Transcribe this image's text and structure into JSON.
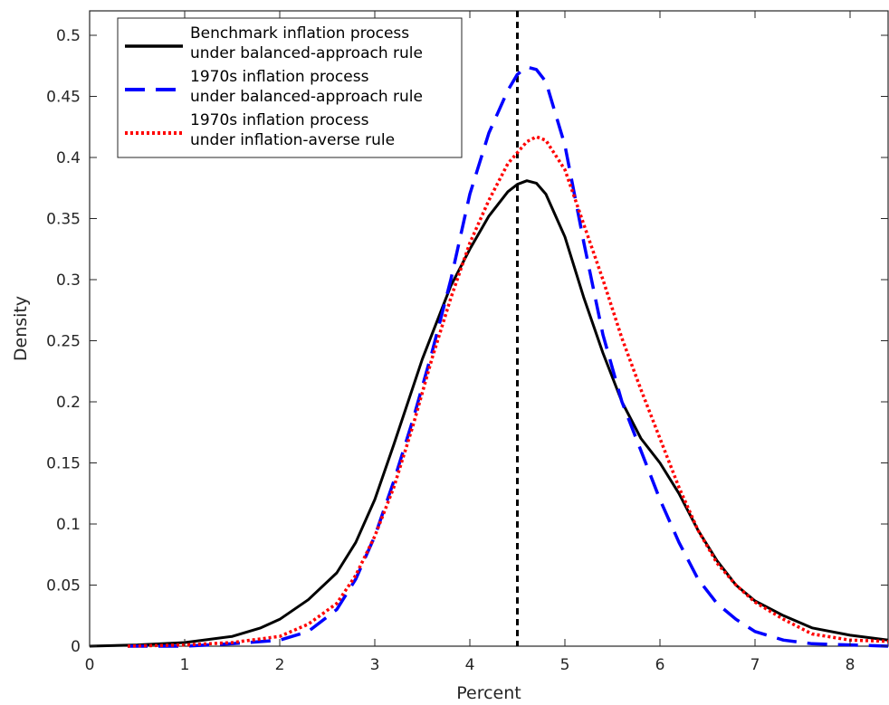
{
  "chart_data": {
    "type": "line",
    "title": "",
    "xlabel": "Percent",
    "ylabel": "Density",
    "xlim": [
      0,
      8.4
    ],
    "ylim": [
      0,
      0.52
    ],
    "xticks": [
      "0",
      "1",
      "2",
      "3",
      "4",
      "5",
      "6",
      "7",
      "8"
    ],
    "yticks": [
      "0",
      "0.05",
      "0.1",
      "0.15",
      "0.2",
      "0.25",
      "0.3",
      "0.35",
      "0.4",
      "0.45",
      "0.5"
    ],
    "grid": false,
    "legend_position": "top-left",
    "reference_line": {
      "x": 4.5,
      "style": "dashed",
      "color": "#000000"
    },
    "series": [
      {
        "name": "Benchmark inflation process under balanced-approach rule",
        "legend_lines": [
          "Benchmark inflation process",
          "under balanced-approach rule"
        ],
        "color": "#000000",
        "style": "solid",
        "x": [
          0,
          0.5,
          1.0,
          1.5,
          1.8,
          2.0,
          2.3,
          2.6,
          2.8,
          3.0,
          3.2,
          3.5,
          3.8,
          4.0,
          4.2,
          4.4,
          4.5,
          4.6,
          4.7,
          4.8,
          5.0,
          5.2,
          5.4,
          5.6,
          5.8,
          6.0,
          6.2,
          6.4,
          6.6,
          6.8,
          7.0,
          7.3,
          7.6,
          8.0,
          8.4
        ],
        "y": [
          0.0,
          0.001,
          0.003,
          0.008,
          0.015,
          0.022,
          0.038,
          0.06,
          0.085,
          0.12,
          0.165,
          0.235,
          0.295,
          0.325,
          0.352,
          0.372,
          0.378,
          0.381,
          0.379,
          0.37,
          0.335,
          0.285,
          0.24,
          0.2,
          0.17,
          0.15,
          0.125,
          0.095,
          0.07,
          0.05,
          0.037,
          0.025,
          0.015,
          0.009,
          0.005
        ]
      },
      {
        "name": "1970s inflation process under balanced-approach rule",
        "legend_lines": [
          "1970s inflation process",
          "under balanced-approach rule"
        ],
        "color": "#0000ff",
        "style": "dashed",
        "x": [
          0.4,
          1.0,
          1.5,
          2.0,
          2.3,
          2.6,
          2.8,
          3.0,
          3.2,
          3.4,
          3.6,
          3.8,
          4.0,
          4.2,
          4.4,
          4.5,
          4.6,
          4.7,
          4.8,
          5.0,
          5.2,
          5.4,
          5.6,
          5.8,
          6.0,
          6.2,
          6.4,
          6.6,
          6.8,
          7.0,
          7.3,
          7.6,
          8.0,
          8.4
        ],
        "y": [
          0.0,
          0.0,
          0.002,
          0.005,
          0.012,
          0.03,
          0.055,
          0.09,
          0.135,
          0.185,
          0.24,
          0.3,
          0.37,
          0.42,
          0.455,
          0.468,
          0.474,
          0.472,
          0.462,
          0.41,
          0.33,
          0.255,
          0.2,
          0.16,
          0.12,
          0.085,
          0.055,
          0.035,
          0.022,
          0.012,
          0.005,
          0.002,
          0.001,
          0.0
        ]
      },
      {
        "name": "1970s inflation process under inflation-averse rule",
        "legend_lines": [
          "1970s inflation process",
          "under inflation-averse rule"
        ],
        "color": "#ff0000",
        "style": "dotted",
        "x": [
          0.4,
          1.0,
          1.5,
          2.0,
          2.3,
          2.6,
          2.8,
          3.0,
          3.2,
          3.4,
          3.6,
          3.8,
          4.0,
          4.2,
          4.4,
          4.6,
          4.7,
          4.8,
          5.0,
          5.2,
          5.4,
          5.6,
          5.8,
          6.0,
          6.2,
          6.4,
          6.6,
          6.8,
          7.0,
          7.3,
          7.6,
          8.0,
          8.4
        ],
        "y": [
          0.0,
          0.001,
          0.003,
          0.008,
          0.018,
          0.035,
          0.058,
          0.09,
          0.13,
          0.18,
          0.235,
          0.285,
          0.33,
          0.365,
          0.395,
          0.413,
          0.417,
          0.414,
          0.39,
          0.345,
          0.3,
          0.252,
          0.21,
          0.17,
          0.13,
          0.095,
          0.068,
          0.05,
          0.036,
          0.022,
          0.01,
          0.005,
          0.004
        ]
      }
    ]
  }
}
